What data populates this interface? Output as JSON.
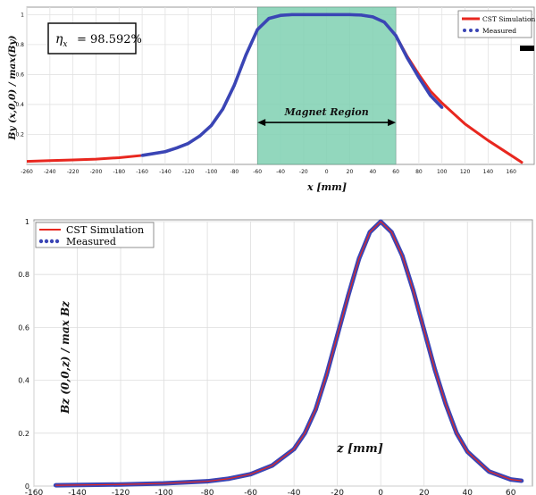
{
  "chart_data": [
    {
      "type": "line",
      "title": "",
      "xlabel": "x [mm]",
      "ylabel": "By (x,0,0) / max(By)",
      "xlim": [
        -260,
        180
      ],
      "ylim": [
        0,
        1.05
      ],
      "x_ticks": [
        -260,
        -240,
        -220,
        -200,
        -180,
        -160,
        -140,
        -120,
        -100,
        -80,
        -60,
        -40,
        -20,
        0,
        20,
        40,
        60,
        80,
        100,
        120,
        140,
        160
      ],
      "y_ticks": [
        0.2,
        0.4,
        0.6,
        0.8,
        1
      ],
      "grid": true,
      "legend_position": "top-right",
      "efficiency_label": "= 98.592%",
      "efficiency_symbol": "η",
      "efficiency_subscript": "x",
      "shaded_region": {
        "label": "Magnet Region",
        "x_range": [
          -60,
          60
        ],
        "color": "#7fd0b2"
      },
      "series": [
        {
          "name": "CST Simulation",
          "color": "#e8271f",
          "x": [
            -260,
            -240,
            -220,
            -200,
            -180,
            -160,
            -140,
            -130,
            -120,
            -110,
            -100,
            -90,
            -80,
            -70,
            -60,
            -50,
            -40,
            -30,
            -20,
            0,
            20,
            30,
            40,
            50,
            60,
            70,
            80,
            90,
            100,
            120,
            140,
            160,
            170
          ],
          "y": [
            0.02,
            0.025,
            0.03,
            0.035,
            0.045,
            0.06,
            0.085,
            0.11,
            0.14,
            0.19,
            0.26,
            0.37,
            0.53,
            0.73,
            0.9,
            0.975,
            0.995,
            1.0,
            1.0,
            1.0,
            1.0,
            0.997,
            0.985,
            0.95,
            0.86,
            0.72,
            0.6,
            0.49,
            0.41,
            0.27,
            0.16,
            0.06,
            0.01
          ]
        },
        {
          "name": "Measured",
          "color": "#3a45b5",
          "x": [
            -160,
            -140,
            -130,
            -120,
            -110,
            -100,
            -90,
            -80,
            -70,
            -60,
            -50,
            -40,
            -30,
            -20,
            0,
            20,
            30,
            40,
            50,
            60,
            70,
            80,
            90,
            100
          ],
          "y": [
            0.06,
            0.085,
            0.11,
            0.14,
            0.19,
            0.26,
            0.37,
            0.53,
            0.73,
            0.9,
            0.975,
            0.995,
            1.0,
            1.0,
            1.0,
            1.0,
            0.997,
            0.985,
            0.95,
            0.86,
            0.71,
            0.58,
            0.46,
            0.38
          ]
        }
      ]
    },
    {
      "type": "line",
      "title": "",
      "xlabel": "z [mm]",
      "ylabel": "Bz (0,0,z) / max Bz",
      "xlim": [
        -160,
        70
      ],
      "ylim": [
        0,
        1.0
      ],
      "x_ticks": [
        -160,
        -140,
        -120,
        -100,
        -80,
        -60,
        -40,
        -20,
        0,
        20,
        40,
        60
      ],
      "y_ticks": [
        0,
        0.2,
        0.4,
        0.6,
        0.8,
        1
      ],
      "grid": true,
      "legend_position": "top-left",
      "series": [
        {
          "name": "CST Simulation",
          "color": "#e8271f",
          "x": [
            -150,
            -120,
            -100,
            -80,
            -70,
            -60,
            -50,
            -40,
            -35,
            -30,
            -25,
            -20,
            -15,
            -10,
            -5,
            0,
            5,
            10,
            15,
            20,
            25,
            30,
            35,
            40,
            50,
            60,
            65
          ],
          "y": [
            0.003,
            0.006,
            0.01,
            0.018,
            0.028,
            0.045,
            0.078,
            0.14,
            0.2,
            0.29,
            0.42,
            0.57,
            0.72,
            0.86,
            0.96,
            1.0,
            0.96,
            0.87,
            0.74,
            0.59,
            0.44,
            0.31,
            0.2,
            0.13,
            0.055,
            0.025,
            0.02
          ]
        },
        {
          "name": "Measured",
          "color": "#3a45b5",
          "x": [
            -150,
            -120,
            -100,
            -80,
            -70,
            -60,
            -50,
            -40,
            -35,
            -30,
            -25,
            -20,
            -15,
            -10,
            -5,
            0,
            5,
            10,
            15,
            20,
            25,
            30,
            35,
            40,
            50,
            60,
            65
          ],
          "y": [
            0.003,
            0.006,
            0.01,
            0.018,
            0.028,
            0.045,
            0.078,
            0.14,
            0.2,
            0.29,
            0.42,
            0.57,
            0.72,
            0.86,
            0.96,
            1.0,
            0.96,
            0.87,
            0.74,
            0.59,
            0.44,
            0.31,
            0.2,
            0.13,
            0.055,
            0.025,
            0.02
          ]
        }
      ]
    }
  ]
}
